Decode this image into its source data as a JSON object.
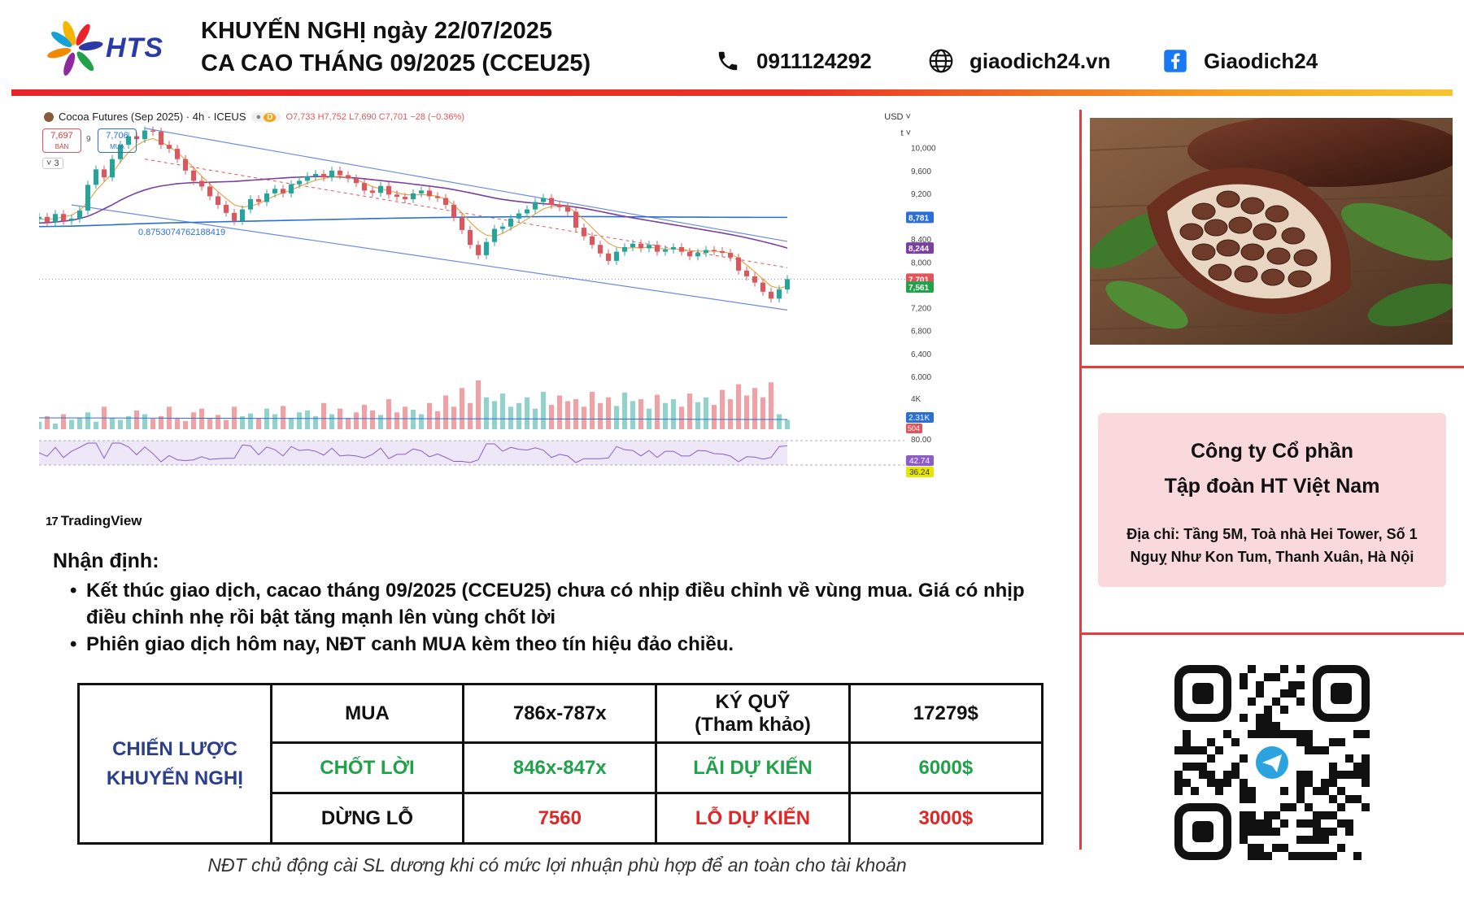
{
  "header": {
    "logo_text": "HTS",
    "title_line1": "KHUYẾN NGHỊ ngày 22/07/2025",
    "title_line2": "CA CAO THÁNG 09/2025 (CCEU25)",
    "phone": "0911124292",
    "website": "giaodich24.vn",
    "facebook": "Giaodich24",
    "icons": {
      "phone": "phone-icon",
      "web": "globe-icon",
      "facebook": "facebook-icon"
    },
    "colors": {
      "bar_red": "#e8242a",
      "bar_yellow": "#f7c531",
      "logo_blue": "#2b3aa6"
    }
  },
  "chart_header": {
    "symbol": "Cocoa Futures (Sep 2025) · 4h · ICEUS",
    "badge": "D",
    "ohlc": "O7,733 H7,752 L7,690 C7,701 −28 (−0.36%)",
    "sell_value": "7,697",
    "sell_label": "BÁN",
    "spread": "9",
    "buy_value": "7,706",
    "buy_label": "MUA",
    "collapse": "˅ 3",
    "currency": "USD ˅",
    "scale": "t ˅",
    "fib_label": "0.8753074762188419",
    "brand": "TradingView"
  },
  "chart_data": {
    "type": "line",
    "title": "Cocoa Futures (Sep 2025) · 4h · ICEUS",
    "xlabel": "",
    "ylabel": "",
    "ylim": [
      5900,
      10450
    ],
    "grid": false,
    "y_ticks": [
      6000,
      6400,
      6800,
      7200,
      8000,
      8400,
      9200,
      9600,
      10000
    ],
    "y_tick_labels": [
      "6,000",
      "6,400",
      "6,800",
      "7,200",
      "8,000",
      "8,400",
      "9,200",
      "9,600",
      "10,000"
    ],
    "price_tags": [
      {
        "label": "8,781",
        "value": 8781,
        "color": "#2b6fd6"
      },
      {
        "label": "8,244",
        "value": 8244,
        "color": "#7b3fa0"
      },
      {
        "label": "7,701",
        "value": 7701,
        "color": "#e0555c"
      },
      {
        "label": "7,561",
        "value": 7561,
        "color": "#21a24a"
      }
    ],
    "close_series": [
      8790,
      8700,
      8840,
      8720,
      8760,
      8900,
      9350,
      9620,
      9480,
      9800,
      10050,
      10200,
      10150,
      10300,
      10280,
      10050,
      9980,
      9800,
      9600,
      9420,
      9320,
      9150,
      9000,
      8860,
      8720,
      8920,
      9100,
      9050,
      9200,
      9280,
      9200,
      9360,
      9420,
      9500,
      9540,
      9480,
      9600,
      9520,
      9460,
      9380,
      9250,
      9210,
      9330,
      9180,
      9140,
      9100,
      9200,
      9250,
      9150,
      9120,
      9000,
      8780,
      8560,
      8300,
      8120,
      8350,
      8580,
      8620,
      8760,
      8850,
      8920,
      9050,
      9120,
      9000,
      8960,
      8880,
      8600,
      8450,
      8300,
      8150,
      8020,
      8180,
      8260,
      8320,
      8240,
      8300,
      8180,
      8220,
      8260,
      8180,
      8100,
      8160,
      8210,
      8190,
      8160,
      8080,
      7850,
      7750,
      7640,
      7480,
      7360,
      7520,
      7701
    ],
    "ma_fast": [
      8760,
      8740,
      8760,
      8790,
      8820,
      8900,
      9050,
      9250,
      9400,
      9550,
      9750,
      9920,
      10040,
      10120,
      10160,
      10100,
      10020,
      9920,
      9790,
      9650,
      9500,
      9360,
      9230,
      9110,
      9000,
      8960,
      8980,
      9020,
      9090,
      9160,
      9210,
      9260,
      9320,
      9380,
      9430,
      9460,
      9490,
      9500,
      9480,
      9440,
      9380,
      9320,
      9280,
      9250,
      9210,
      9180,
      9170,
      9180,
      9170,
      9150,
      9100,
      9000,
      8860,
      8700,
      8560,
      8470,
      8450,
      8500,
      8580,
      8660,
      8750,
      8840,
      8930,
      8970,
      8980,
      8960,
      8870,
      8740,
      8600,
      8460,
      8330,
      8260,
      8240,
      8250,
      8250,
      8260,
      8240,
      8230,
      8230,
      8220,
      8200,
      8190,
      8190,
      8190,
      8180,
      8150,
      8060,
      7950,
      7830,
      7700,
      7580,
      7540,
      7580
    ],
    "ma_slow": [
      8680,
      8690,
      8700,
      8715,
      8730,
      8760,
      8800,
      8860,
      8930,
      9000,
      9080,
      9150,
      9210,
      9260,
      9300,
      9330,
      9350,
      9370,
      9380,
      9390,
      9390,
      9395,
      9400,
      9405,
      9410,
      9420,
      9430,
      9440,
      9450,
      9460,
      9470,
      9478,
      9485,
      9490,
      9495,
      9495,
      9492,
      9488,
      9480,
      9470,
      9455,
      9440,
      9425,
      9410,
      9395,
      9380,
      9362,
      9345,
      9328,
      9310,
      9290,
      9265,
      9238,
      9210,
      9180,
      9150,
      9120,
      9095,
      9075,
      9058,
      9042,
      9030,
      9020,
      9008,
      8995,
      8980,
      8960,
      8938,
      8912,
      8884,
      8855,
      8826,
      8798,
      8772,
      8748,
      8724,
      8700,
      8676,
      8652,
      8628,
      8604,
      8580,
      8556,
      8532,
      8508,
      8482,
      8454,
      8424,
      8392,
      8358,
      8322,
      8285,
      8244
    ],
    "ma_base": [
      8620,
      8621,
      8623,
      8625,
      8628,
      8632,
      8636,
      8641,
      8646,
      8651,
      8657,
      8662,
      8668,
      8672,
      8677,
      8681,
      8685,
      8688,
      8691,
      8694,
      8697,
      8700,
      8703,
      8706,
      8709,
      8712,
      8715,
      8718,
      8721,
      8724,
      8727,
      8730,
      8733,
      8736,
      8739,
      8742,
      8745,
      8748,
      8751,
      8754,
      8757,
      8760,
      8763,
      8765,
      8768,
      8770,
      8772,
      8774,
      8776,
      8778,
      8780,
      8782,
      8784,
      8785,
      8786,
      8787,
      8788,
      8789,
      8790,
      8791,
      8792,
      8793,
      8794,
      8794,
      8795,
      8795,
      8795,
      8795,
      8794,
      8794,
      8793,
      8792,
      8791,
      8790,
      8790,
      8789,
      8788,
      8788,
      8787,
      8786,
      8785,
      8785,
      8784,
      8783,
      8783,
      8782,
      8782,
      8782,
      8781,
      8781,
      8781,
      8781,
      8781
    ],
    "volume": [
      20,
      35,
      15,
      40,
      25,
      30,
      45,
      20,
      60,
      30,
      25,
      35,
      50,
      40,
      28,
      35,
      60,
      30,
      22,
      45,
      55,
      30,
      38,
      25,
      60,
      35,
      42,
      30,
      55,
      40,
      62,
      30,
      45,
      50,
      35,
      70,
      40,
      55,
      30,
      45,
      65,
      50,
      38,
      80,
      45,
      60,
      52,
      40,
      70,
      48,
      90,
      60,
      110,
      70,
      130,
      85,
      75,
      95,
      60,
      70,
      85,
      55,
      100,
      65,
      90,
      75,
      80,
      60,
      100,
      70,
      85,
      62,
      98,
      75,
      80,
      55,
      92,
      70,
      80,
      60,
      95,
      72,
      85,
      65,
      105,
      80,
      120,
      90,
      110,
      85,
      125,
      40,
      25
    ],
    "rsi_labels": [
      "80.00",
      "42.74",
      "36.24"
    ],
    "volume_labels": [
      "4K",
      "2.31K",
      "504"
    ]
  },
  "photo": {
    "subject": "cocoa-pod-photo"
  },
  "company": {
    "name_line1": "Công ty Cổ phần",
    "name_line2": "Tập đoàn HT Việt Nam",
    "address": "Địa chỉ: Tầng 5M, Toà nhà Hei Tower, Số 1 Nguỵ Như Kon Tum, Thanh Xuân, Hà Nội"
  },
  "analysis": {
    "title": "Nhận định:",
    "bullets": [
      "Kết thúc giao dịch, cacao tháng 09/2025 (CCEU25) chưa có nhịp điều chỉnh về vùng mua. Giá có nhịp điều chỉnh nhẹ rồi bật tăng mạnh lên vùng chốt lời",
      "Phiên giao dịch hôm nay, NĐT canh MUA kèm theo tín hiệu đảo chiều."
    ]
  },
  "strategy": {
    "label": "CHIẾN LƯỢC KHUYẾN NGHỊ",
    "buy_label": "MUA",
    "buy_value": "786x-787x",
    "margin_label_1": "KÝ QUỸ",
    "margin_label_2": "(Tham khảo)",
    "margin_value": "17279$",
    "tp_label": "CHỐT LỜI",
    "tp_value": "846x-847x",
    "profit_label": "LÃI DỰ KIẾN",
    "profit_value": "6000$",
    "sl_label": "DỪNG LỖ",
    "sl_value": "7560",
    "loss_label": "LỖ DỰ KIẾN",
    "loss_value": "3000$"
  },
  "note": "NĐT chủ động cài SL dương khi có mức lợi nhuận phù hợp để an toàn cho tài khoản"
}
